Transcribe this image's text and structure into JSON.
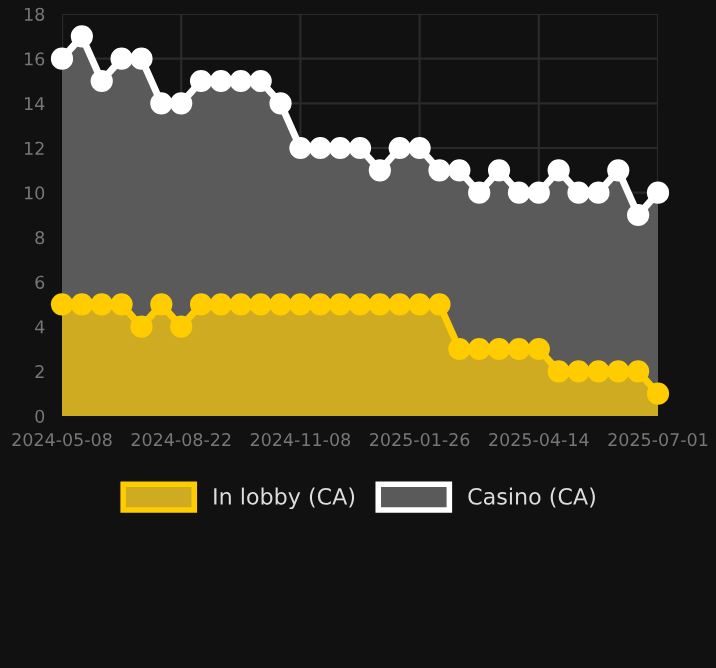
{
  "chart_data": {
    "type": "area",
    "categories": [
      "2024-05-08",
      null,
      null,
      null,
      null,
      null,
      "2024-08-22",
      null,
      null,
      null,
      null,
      null,
      "2024-11-08",
      null,
      null,
      null,
      null,
      null,
      "2025-01-26",
      null,
      null,
      null,
      null,
      null,
      "2025-04-14",
      null,
      null,
      null,
      null,
      null,
      "2025-07-01"
    ],
    "series": [
      {
        "name": "Casino (CA)",
        "color": "#ffffff",
        "values": [
          16,
          17,
          15,
          16,
          16,
          14,
          14,
          15,
          15,
          15,
          15,
          14,
          12,
          12,
          12,
          12,
          11,
          12,
          12,
          11,
          11,
          10,
          11,
          10,
          10,
          11,
          10,
          10,
          11,
          9,
          10
        ]
      },
      {
        "name": "In lobby (CA)",
        "color": "#ffcc00",
        "values": [
          5,
          5,
          5,
          5,
          4,
          5,
          4,
          5,
          5,
          5,
          5,
          5,
          5,
          5,
          5,
          5,
          5,
          5,
          5,
          5,
          3,
          3,
          3,
          3,
          3,
          2,
          2,
          2,
          2,
          2,
          1
        ]
      }
    ],
    "ylim": [
      0,
      18
    ],
    "yticks": [
      0,
      2,
      4,
      6,
      8,
      10,
      12,
      14,
      16,
      18
    ],
    "grid": true,
    "legend": "bottom",
    "marker": "circle",
    "line_style": "solid"
  }
}
